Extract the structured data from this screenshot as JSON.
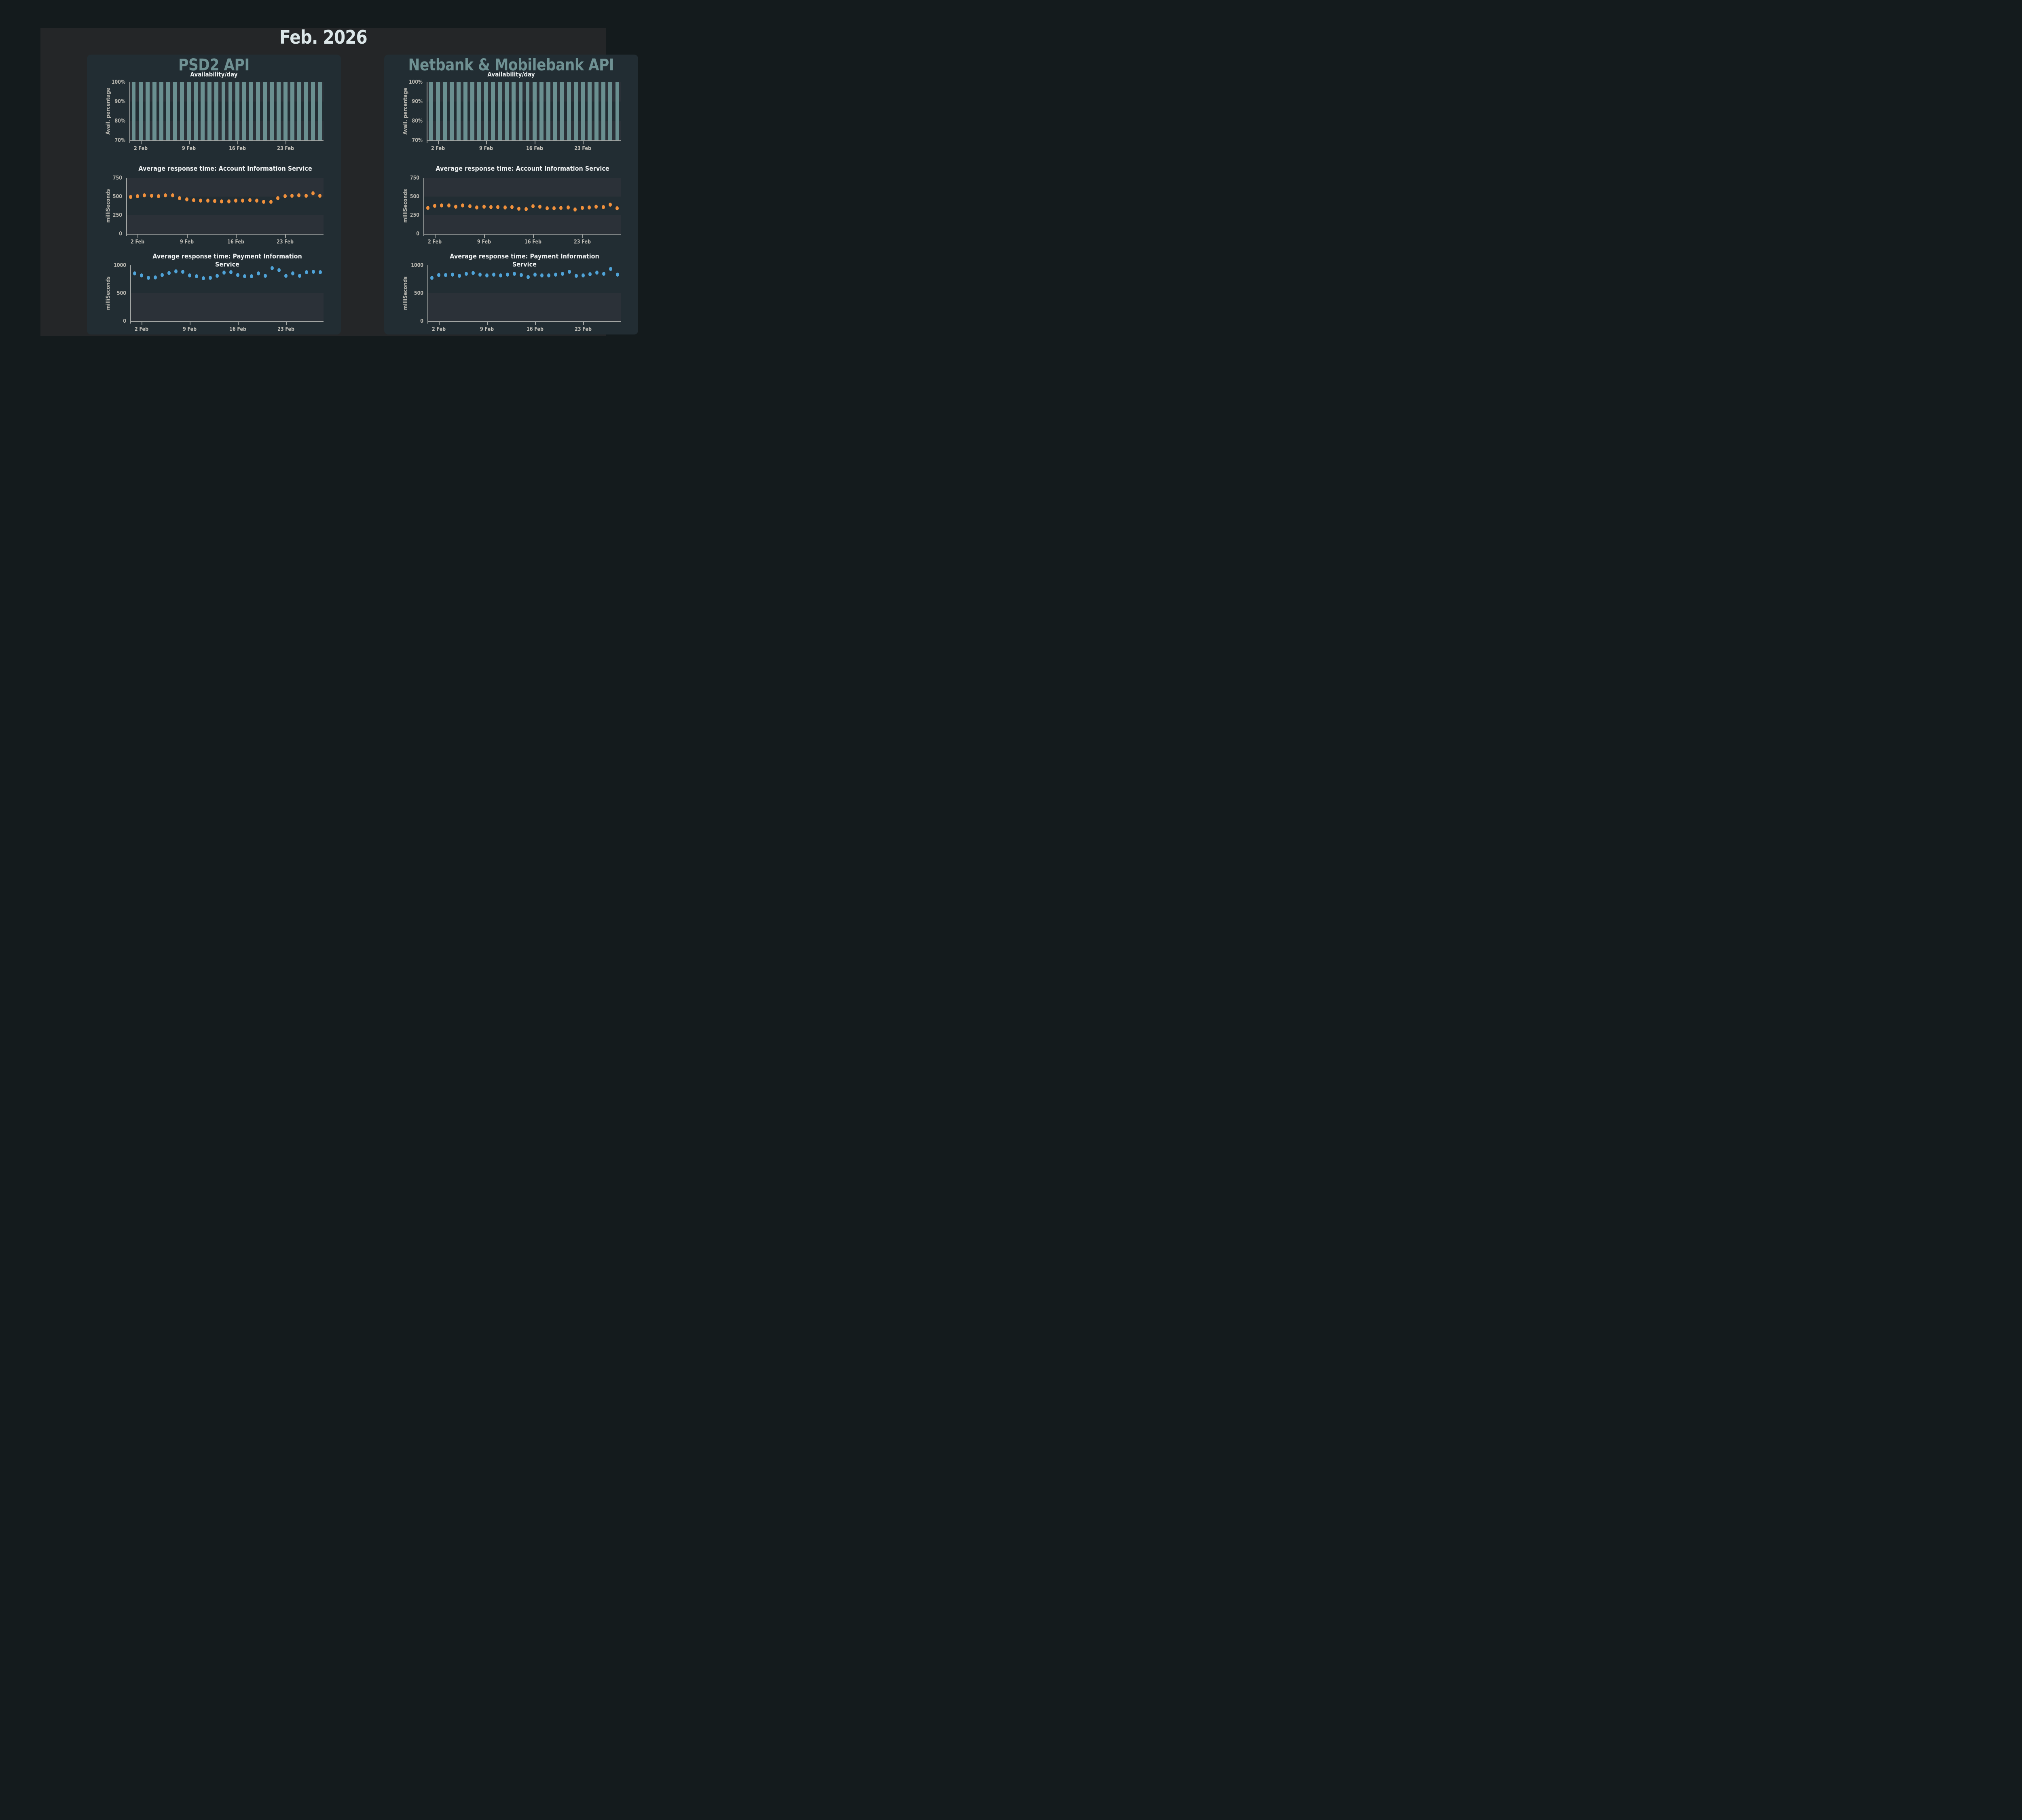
{
  "title": "Feb. 2026",
  "colors": {
    "page_bg": "#141b1d",
    "panel_bg": "#242628",
    "card_bg": "#222d33",
    "band_light": "#2b3138",
    "bar": "#6a8f90",
    "card_title": "#6f9193",
    "main_title": "#dbe6e8",
    "chart_title": "#eef1f2",
    "tick_label": "#b9b7b0",
    "axis_line": "#a2a5a3",
    "ais_dot": "#f2913c",
    "pis_dot": "#4fa3d8"
  },
  "chart_data": [
    {
      "panel": "PSD2 API",
      "charts": [
        {
          "id": "availability",
          "type": "bar",
          "title": "Availability/day",
          "ylabel": "Avail. percentage",
          "ylim": [
            70,
            100
          ],
          "yticks": [
            {
              "v": 100,
              "label": "100%"
            },
            {
              "v": 90,
              "label": "90%"
            },
            {
              "v": 80,
              "label": "80%"
            },
            {
              "v": 70,
              "label": "70%"
            }
          ],
          "xticks": [
            {
              "day": 2,
              "label": "2 Feb"
            },
            {
              "day": 9,
              "label": "9 Feb"
            },
            {
              "day": 16,
              "label": "16 Feb"
            },
            {
              "day": 23,
              "label": "23 Feb"
            }
          ],
          "days": 28,
          "values": [
            100,
            100,
            100,
            100,
            100,
            100,
            100,
            100,
            100,
            100,
            100,
            100,
            100,
            100,
            100,
            100,
            100,
            100,
            100,
            100,
            100,
            100,
            100,
            100,
            100,
            100,
            100,
            100
          ]
        },
        {
          "id": "ais",
          "type": "scatter",
          "title": "Average response time: Account Information Service",
          "ylabel": "milliSeconds",
          "ylim": [
            0,
            750
          ],
          "yticks": [
            {
              "v": 750,
              "label": "750"
            },
            {
              "v": 500,
              "label": "500"
            },
            {
              "v": 250,
              "label": "250"
            },
            {
              "v": 0,
              "label": "0"
            }
          ],
          "xticks": [
            {
              "day": 2,
              "label": "2 Feb"
            },
            {
              "day": 9,
              "label": "9 Feb"
            },
            {
              "day": 16,
              "label": "16 Feb"
            },
            {
              "day": 23,
              "label": "23 Feb"
            }
          ],
          "days": 28,
          "values": [
            497,
            508,
            519,
            512,
            504,
            514,
            519,
            477,
            460,
            452,
            448,
            444,
            439,
            434,
            436,
            444,
            447,
            449,
            444,
            431,
            428,
            477,
            506,
            513,
            514,
            509,
            545,
            512
          ]
        },
        {
          "id": "pis",
          "type": "scatter",
          "title": "Average response time: Payment Information Service",
          "ylabel": "milliSeconds",
          "ylim": [
            0,
            1000
          ],
          "yticks": [
            {
              "v": 1000,
              "label": "1000"
            },
            {
              "v": 500,
              "label": "500"
            },
            {
              "v": 0,
              "label": "0"
            }
          ],
          "xticks": [
            {
              "day": 2,
              "label": "2 Feb"
            },
            {
              "day": 9,
              "label": "9 Feb"
            },
            {
              "day": 16,
              "label": "16 Feb"
            },
            {
              "day": 23,
              "label": "23 Feb"
            }
          ],
          "days": 28,
          "values": [
            854,
            819,
            774,
            783,
            823,
            863,
            889,
            884,
            819,
            805,
            770,
            774,
            814,
            872,
            876,
            823,
            801,
            801,
            858,
            814,
            947,
            911,
            810,
            854,
            810,
            876,
            884,
            880
          ]
        }
      ]
    },
    {
      "panel": "Netbank & Mobilebank API",
      "charts": [
        {
          "id": "availability",
          "type": "bar",
          "title": "Availability/day",
          "ylabel": "Avail. percentage",
          "ylim": [
            70,
            100
          ],
          "yticks": [
            {
              "v": 100,
              "label": "100%"
            },
            {
              "v": 90,
              "label": "90%"
            },
            {
              "v": 80,
              "label": "80%"
            },
            {
              "v": 70,
              "label": "70%"
            }
          ],
          "xticks": [
            {
              "day": 2,
              "label": "2 Feb"
            },
            {
              "day": 9,
              "label": "9 Feb"
            },
            {
              "day": 16,
              "label": "16 Feb"
            },
            {
              "day": 23,
              "label": "23 Feb"
            }
          ],
          "days": 28,
          "values": [
            100,
            100,
            100,
            100,
            100,
            100,
            100,
            100,
            100,
            100,
            100,
            100,
            100,
            100,
            100,
            100,
            100,
            100,
            100,
            100,
            100,
            100,
            100,
            100,
            100,
            100,
            100,
            100
          ]
        },
        {
          "id": "ais",
          "type": "scatter",
          "title": "Average response time: Account Information Service",
          "ylabel": "milliSeconds",
          "ylim": [
            0,
            750
          ],
          "yticks": [
            {
              "v": 750,
              "label": "750"
            },
            {
              "v": 500,
              "label": "500"
            },
            {
              "v": 250,
              "label": "250"
            },
            {
              "v": 0,
              "label": "0"
            }
          ],
          "xticks": [
            {
              "day": 2,
              "label": "2 Feb"
            },
            {
              "day": 9,
              "label": "9 Feb"
            },
            {
              "day": 16,
              "label": "16 Feb"
            },
            {
              "day": 23,
              "label": "23 Feb"
            }
          ],
          "days": 28,
          "values": [
            350,
            375,
            378,
            380,
            365,
            378,
            368,
            352,
            365,
            360,
            356,
            355,
            358,
            336,
            332,
            368,
            362,
            345,
            342,
            350,
            355,
            328,
            348,
            355,
            362,
            360,
            390,
            340
          ]
        },
        {
          "id": "pis",
          "type": "scatter",
          "title": "Average response time: Payment Information Service",
          "ylabel": "milliSeconds",
          "ylim": [
            0,
            1000
          ],
          "yticks": [
            {
              "v": 1000,
              "label": "1000"
            },
            {
              "v": 500,
              "label": "500"
            },
            {
              "v": 0,
              "label": "0"
            }
          ],
          "xticks": [
            {
              "day": 2,
              "label": "2 Feb"
            },
            {
              "day": 9,
              "label": "9 Feb"
            },
            {
              "day": 16,
              "label": "16 Feb"
            },
            {
              "day": 23,
              "label": "23 Feb"
            }
          ],
          "days": 28,
          "values": [
            774,
            823,
            825,
            832,
            814,
            850,
            863,
            832,
            820,
            836,
            818,
            832,
            845,
            823,
            792,
            832,
            818,
            820,
            836,
            847,
            885,
            810,
            818,
            838,
            872,
            847,
            938,
            832
          ]
        }
      ]
    }
  ]
}
